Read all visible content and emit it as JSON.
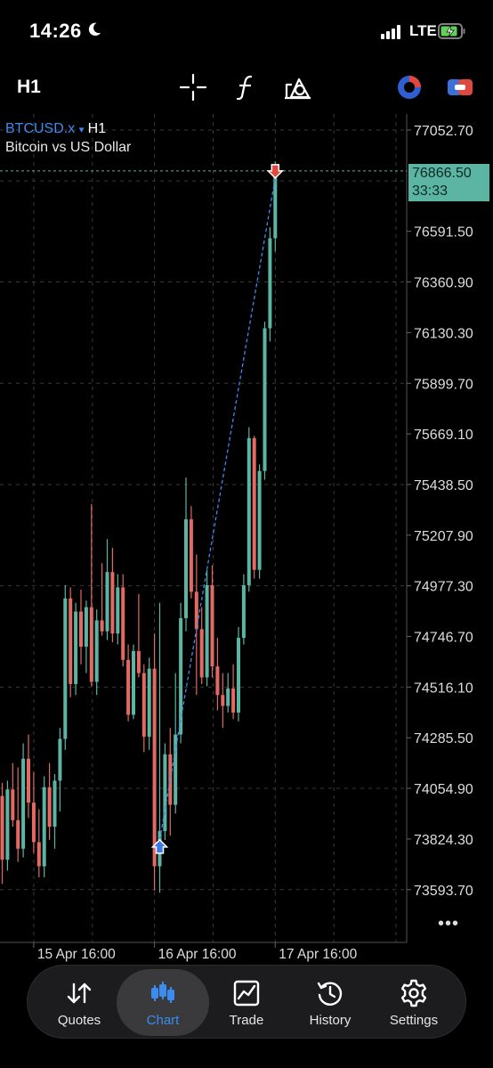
{
  "status_bar": {
    "time": "14:26",
    "network": "LTE"
  },
  "toolbar": {
    "timeframe": "H1"
  },
  "chart_header": {
    "symbol": "BTCUSD.x",
    "symbol_arrow": "▾",
    "timeframe": "H1",
    "description": "Bitcoin vs US Dollar"
  },
  "current_price": {
    "price": "76866.50",
    "countdown": "33:33"
  },
  "more_label": "•••",
  "nav": {
    "items": [
      {
        "label": "Quotes",
        "icon": "quotes-icon"
      },
      {
        "label": "Chart",
        "icon": "chart-icon",
        "active": true
      },
      {
        "label": "Trade",
        "icon": "trade-icon"
      },
      {
        "label": "History",
        "icon": "history-icon"
      },
      {
        "label": "Settings",
        "icon": "settings-icon"
      }
    ]
  },
  "colors": {
    "bull": "#5bb5a2",
    "bear": "#e26a62",
    "accent": "#3c8cf0",
    "grid": "#3a3a3a"
  },
  "chart_data": {
    "type": "candlestick",
    "symbol": "BTCUSD.x",
    "timeframe": "H1",
    "y_ticks": [
      "77052.70",
      "76591.50",
      "76360.90",
      "76130.30",
      "75899.70",
      "75669.10",
      "75438.50",
      "75207.90",
      "74977.30",
      "74746.70",
      "74516.10",
      "74285.50",
      "74054.90",
      "73824.30",
      "73593.70"
    ],
    "y_tick_values": [
      77052.7,
      76591.5,
      76360.9,
      76130.3,
      75899.7,
      75669.1,
      75438.5,
      75207.9,
      74977.3,
      74746.7,
      74516.1,
      74285.5,
      74054.9,
      73824.3,
      73593.7
    ],
    "ylim": [
      73420,
      77245
    ],
    "x_ticks": [
      "15 Apr 16:00",
      "16 Apr 16:00",
      "17 Apr 16:00"
    ],
    "x_tick_index": [
      6,
      29,
      52
    ],
    "last_price": 76866.5,
    "trade": {
      "buy_index": 30,
      "buy_price": 73780,
      "sell_index": 52,
      "sell_price": 76866.5
    },
    "candles": [
      [
        74020,
        74080,
        73620,
        73730
      ],
      [
        73730,
        74090,
        73680,
        74050
      ],
      [
        74050,
        74170,
        73880,
        73910
      ],
      [
        73910,
        74150,
        73720,
        73780
      ],
      [
        73780,
        74260,
        73740,
        74190
      ],
      [
        74190,
        74300,
        73920,
        73990
      ],
      [
        73990,
        74130,
        73760,
        73810
      ],
      [
        73810,
        73960,
        73650,
        73700
      ],
      [
        73700,
        74110,
        73650,
        74060
      ],
      [
        74060,
        74170,
        73820,
        73880
      ],
      [
        73880,
        74120,
        73780,
        74090
      ],
      [
        74090,
        74330,
        73950,
        74280
      ],
      [
        74280,
        74980,
        74230,
        74920
      ],
      [
        74920,
        74970,
        74470,
        74530
      ],
      [
        74530,
        74900,
        74480,
        74860
      ],
      [
        74860,
        74960,
        74620,
        74700
      ],
      [
        74700,
        74910,
        74580,
        74880
      ],
      [
        74880,
        75350,
        74520,
        74540
      ],
      [
        74540,
        74870,
        74480,
        74820
      ],
      [
        74820,
        75080,
        74750,
        74770
      ],
      [
        74770,
        75190,
        74730,
        75040
      ],
      [
        75040,
        75150,
        74720,
        74760
      ],
      [
        74760,
        75030,
        74710,
        74970
      ],
      [
        74970,
        75030,
        74610,
        74640
      ],
      [
        74640,
        74710,
        74360,
        74390
      ],
      [
        74390,
        74710,
        74370,
        74680
      ],
      [
        74680,
        74940,
        74560,
        74580
      ],
      [
        74580,
        74620,
        74220,
        74290
      ],
      [
        74290,
        74650,
        74230,
        74600
      ],
      [
        74600,
        74760,
        73590,
        73700
      ],
      [
        73700,
        74900,
        73580,
        73860
      ],
      [
        73860,
        74260,
        73820,
        74210
      ],
      [
        74210,
        74330,
        73840,
        73980
      ],
      [
        73980,
        74580,
        73940,
        74300
      ],
      [
        74300,
        74900,
        74260,
        74830
      ],
      [
        74830,
        75470,
        74770,
        75280
      ],
      [
        75280,
        75340,
        74920,
        74950
      ],
      [
        74950,
        75120,
        74480,
        74780
      ],
      [
        74780,
        74880,
        74530,
        74560
      ],
      [
        74560,
        75050,
        74520,
        74980
      ],
      [
        74980,
        75070,
        74560,
        74610
      ],
      [
        74610,
        74740,
        74410,
        74480
      ],
      [
        74480,
        74580,
        74330,
        74430
      ],
      [
        74430,
        74580,
        74400,
        74510
      ],
      [
        74510,
        74620,
        74370,
        74400
      ],
      [
        74400,
        74790,
        74360,
        74740
      ],
      [
        74740,
        75030,
        74710,
        74980
      ],
      [
        74980,
        75700,
        74950,
        75650
      ],
      [
        75650,
        75660,
        75010,
        75050
      ],
      [
        75050,
        75530,
        75010,
        75500
      ],
      [
        75500,
        76180,
        75460,
        76150
      ],
      [
        76150,
        76610,
        76090,
        76560
      ],
      [
        76560,
        76910,
        76500,
        76866.5
      ]
    ]
  }
}
